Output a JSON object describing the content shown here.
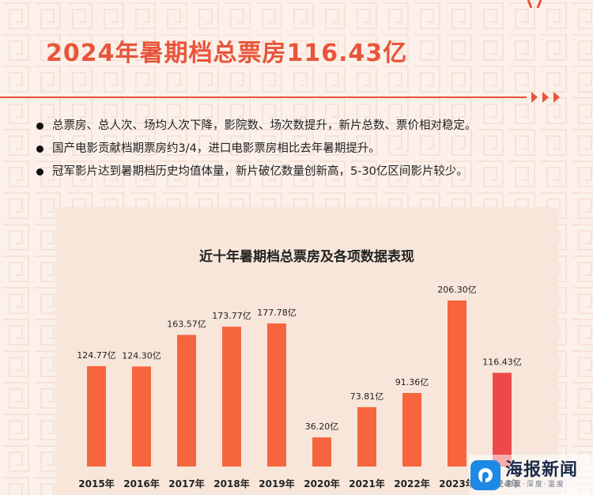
{
  "header": {
    "title": "2024年暑期档总票房116.43亿"
  },
  "bullets": [
    "总票房、总人次、场均人次下降，影院数、场次数提升，新片总数、票价相对稳定。",
    "国产电影贡献档期票房约3/4，进口电影票房相比去年暑期提升。",
    "冠军影片达到暑期档历史均值体量，新片破亿数量创新高，5-30亿区间影片较少。"
  ],
  "watermark": {
    "name": "海报新闻",
    "sub": "速度·深度·温度"
  },
  "colors": {
    "accent": "#e8553b",
    "bar": "#f7653f",
    "bar_highlight": "#ec4a4a",
    "card": "#f7e6d9"
  },
  "chart_data": {
    "type": "bar",
    "title": "近十年暑期档总票房及各项数据表现",
    "categories": [
      "2015年",
      "2016年",
      "2017年",
      "2018年",
      "2019年",
      "2020年",
      "2021年",
      "2022年",
      "2023年",
      "2024年"
    ],
    "values": [
      124.77,
      124.3,
      163.57,
      173.77,
      177.78,
      36.2,
      73.81,
      91.36,
      206.3,
      116.43
    ],
    "labels": [
      "124.77亿",
      "124.30亿",
      "163.57亿",
      "173.77亿",
      "177.78亿",
      "36.20亿",
      "73.81亿",
      "91.36亿",
      "206.30亿",
      "116.43亿"
    ],
    "highlight_index": 9,
    "xlabel": "",
    "ylabel": "",
    "grid": false,
    "legend": "none"
  }
}
